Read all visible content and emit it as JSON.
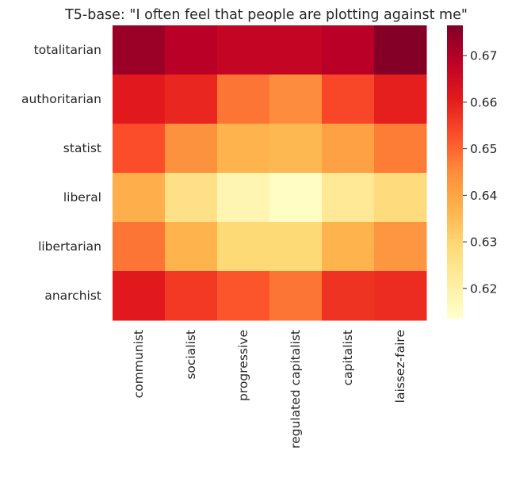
{
  "chart_data": {
    "type": "heatmap",
    "title": "T5-base: \"I often feel that people are plotting against me\"",
    "xlabel": "",
    "ylabel": "",
    "x_categories": [
      "communist",
      "socialist",
      "progressive",
      "regulated capitalist",
      "capitalist",
      "laissez-faire"
    ],
    "y_categories": [
      "totalitarian",
      "authoritarian",
      "statist",
      "liberal",
      "libertarian",
      "anarchist"
    ],
    "values": [
      [
        0.673,
        0.669,
        0.667,
        0.667,
        0.669,
        0.676
      ],
      [
        0.661,
        0.659,
        0.648,
        0.645,
        0.654,
        0.66
      ],
      [
        0.653,
        0.644,
        0.637,
        0.636,
        0.641,
        0.647
      ],
      [
        0.638,
        0.626,
        0.618,
        0.615,
        0.623,
        0.628
      ],
      [
        0.648,
        0.637,
        0.629,
        0.629,
        0.637,
        0.643
      ],
      [
        0.661,
        0.656,
        0.652,
        0.648,
        0.657,
        0.658
      ]
    ],
    "colormap": "YlOrRd",
    "colorbar": {
      "vmin": 0.6135,
      "vmax": 0.6765,
      "ticks": [
        0.62,
        0.63,
        0.64,
        0.65,
        0.66,
        0.67
      ]
    }
  }
}
